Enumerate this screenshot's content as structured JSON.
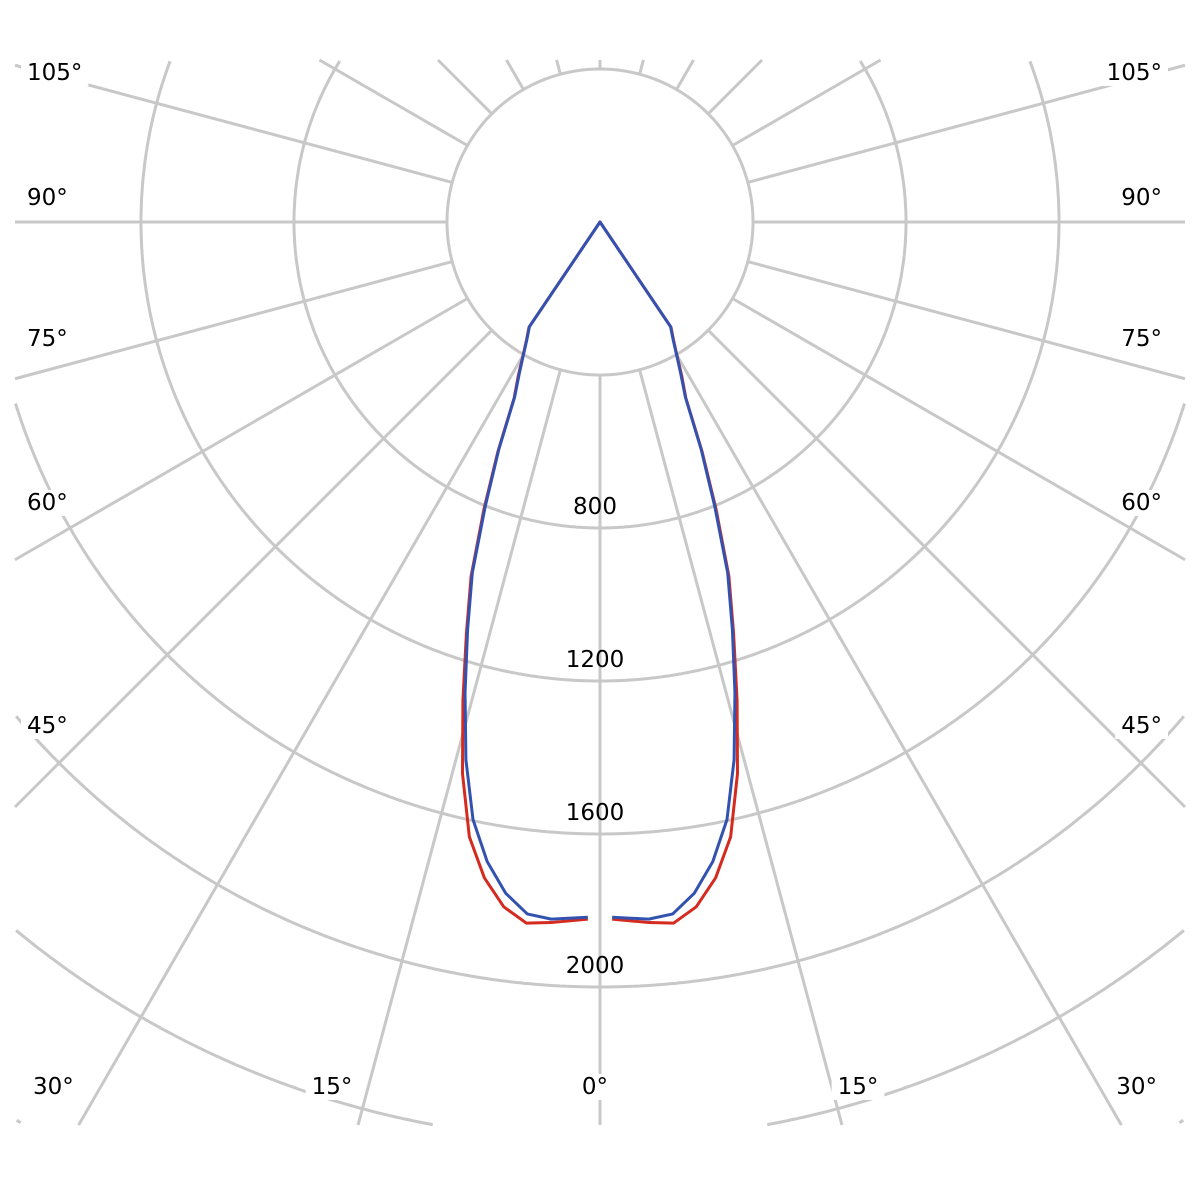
{
  "chart_data": {
    "type": "polar-line",
    "title": "",
    "angle_unit": "degrees",
    "zero_direction": "down",
    "symmetric": true,
    "radial_range": [
      0,
      2800
    ],
    "radial_ticks": [
      400,
      800,
      1200,
      1600,
      2000,
      2400,
      2800
    ],
    "radial_tick_labels": [
      "800",
      "1200",
      "1600",
      "2000"
    ],
    "angle_gridlines_step": 15,
    "angle_labels": {
      "left": [
        "105°",
        "90°",
        "75°",
        "60°",
        "45°",
        "30°"
      ],
      "bottom": [
        "15°",
        "0°",
        "15°"
      ],
      "right": [
        "105°",
        "90°",
        "75°",
        "60°",
        "45°",
        "30°"
      ]
    },
    "grid": true,
    "grid_color": "#c8c8c8",
    "series": [
      {
        "color": "#d42a20",
        "angles": [
          1,
          4,
          6,
          8,
          10,
          12,
          14,
          16,
          18,
          20,
          22,
          24,
          26,
          28,
          30,
          32,
          34,
          36
        ],
        "values": [
          1823,
          1836,
          1843,
          1808,
          1741,
          1643,
          1486,
          1300,
          1130,
          985,
          810,
          655,
          512,
          455,
          402,
          362,
          332,
          0
        ]
      },
      {
        "color": "#3352b0",
        "angles": [
          1,
          4,
          6,
          8,
          10,
          12,
          14,
          16,
          18,
          20,
          22,
          24,
          26,
          28,
          30,
          32,
          34,
          36
        ],
        "values": [
          1818,
          1827,
          1819,
          1772,
          1698,
          1597,
          1449,
          1280,
          1120,
          976,
          800,
          650,
          509,
          450,
          400,
          360,
          330,
          0
        ]
      }
    ]
  }
}
